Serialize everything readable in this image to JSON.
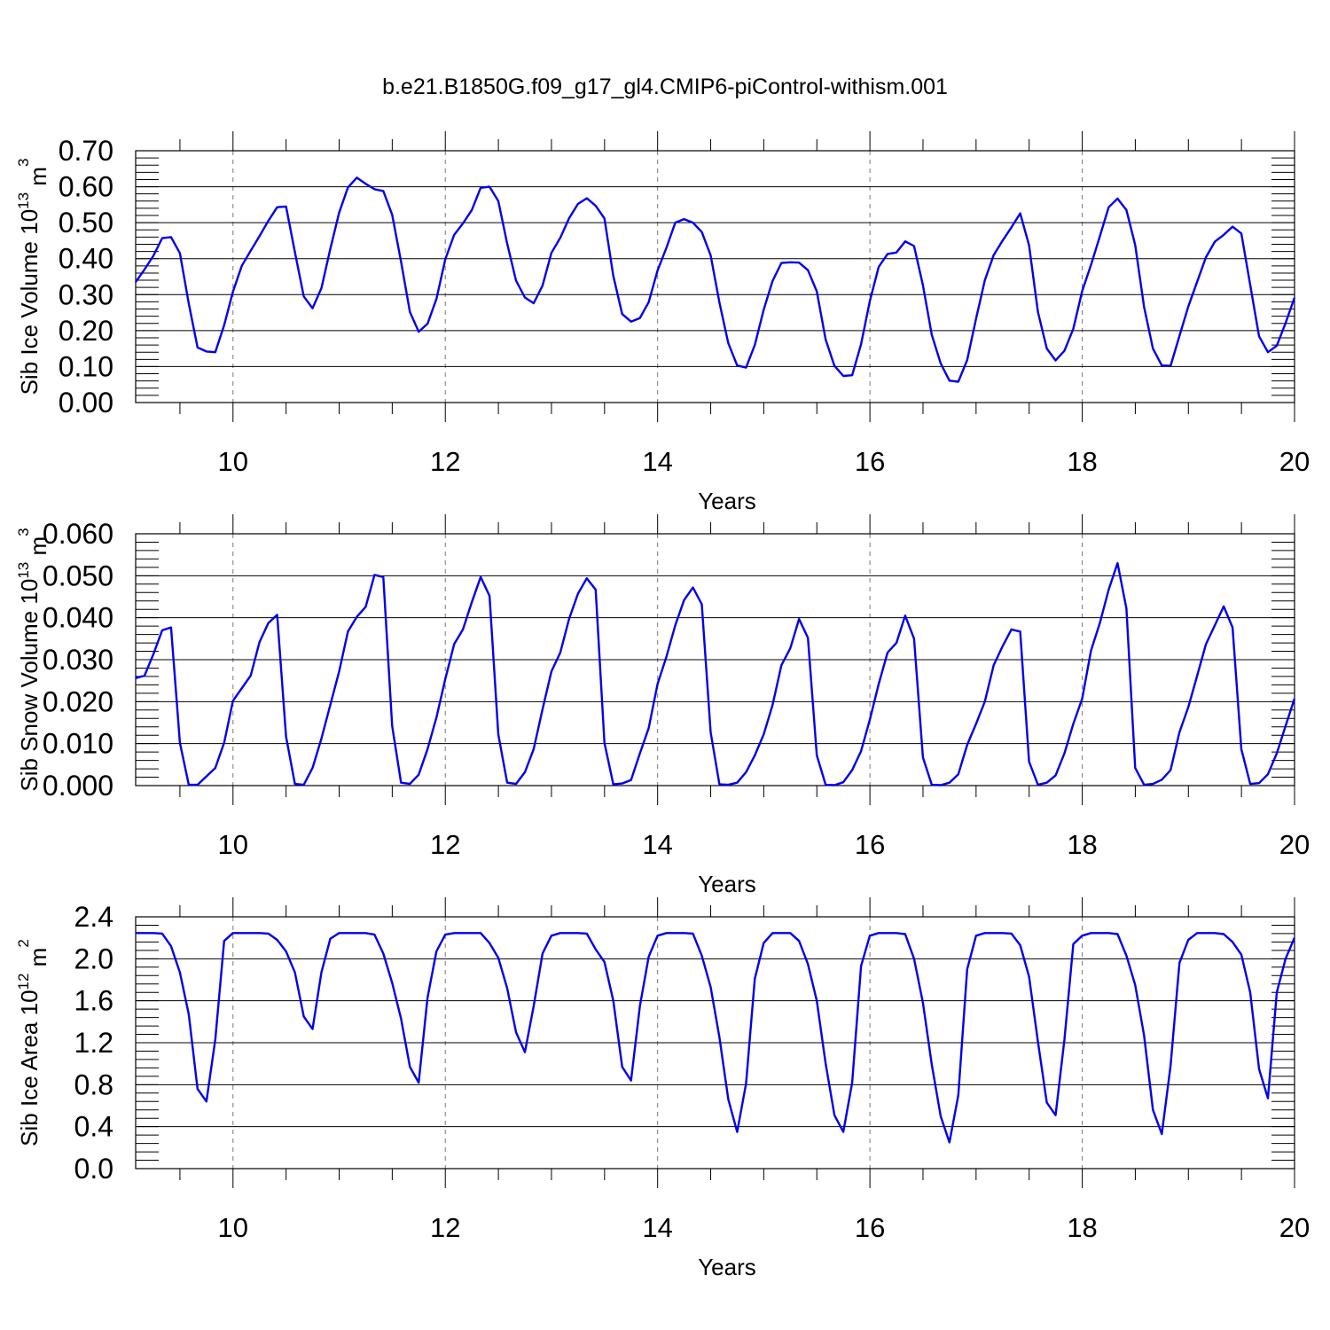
{
  "title": "b.e21.B1850G.f09_g17_gl4.CMIP6-piControl-withism.001",
  "x_ticks": [
    "10",
    "12",
    "14",
    "16",
    "18",
    "20"
  ],
  "chart_data": [
    {
      "type": "line",
      "title": "b.e21.B1850G.f09_g17_gl4.CMIP6-piControl-withism.001",
      "xlabel": "Years",
      "ylabel_text": "Sib Ice Volume 10",
      "ylabel_exp": "13",
      "ylabel_unit": " m",
      "ylabel_unit_exp": "3",
      "xlim": [
        9.083,
        20
      ],
      "ylim": [
        0,
        0.7
      ],
      "x_ticks": [
        10,
        12,
        14,
        16,
        18,
        20
      ],
      "y_ticks": [
        "0.00",
        "0.10",
        "0.20",
        "0.30",
        "0.40",
        "0.50",
        "0.60",
        "0.70"
      ],
      "y_minor_step": 0.02,
      "grid": "vertical dashed at major x ticks",
      "line_color": "#0000ee",
      "series": [
        {
          "x_start": 9.083,
          "x_step": 0.08333,
          "values": [
            0.335,
            0.37,
            0.408,
            0.457,
            0.46,
            0.415,
            0.275,
            0.153,
            0.142,
            0.14,
            0.215,
            0.308,
            0.38,
            0.422,
            0.463,
            0.505,
            0.543,
            0.545,
            0.418,
            0.295,
            0.262,
            0.318,
            0.427,
            0.528,
            0.598,
            0.625,
            0.608,
            0.593,
            0.588,
            0.522,
            0.392,
            0.252,
            0.197,
            0.219,
            0.288,
            0.398,
            0.466,
            0.498,
            0.535,
            0.597,
            0.6,
            0.56,
            0.442,
            0.339,
            0.292,
            0.276,
            0.325,
            0.416,
            0.458,
            0.512,
            0.552,
            0.568,
            0.547,
            0.512,
            0.352,
            0.246,
            0.225,
            0.235,
            0.279,
            0.367,
            0.43,
            0.5,
            0.51,
            0.5,
            0.474,
            0.409,
            0.278,
            0.165,
            0.103,
            0.097,
            0.16,
            0.258,
            0.338,
            0.388,
            0.39,
            0.389,
            0.368,
            0.309,
            0.175,
            0.102,
            0.074,
            0.076,
            0.162,
            0.282,
            0.377,
            0.413,
            0.417,
            0.448,
            0.435,
            0.326,
            0.188,
            0.109,
            0.061,
            0.058,
            0.118,
            0.233,
            0.34,
            0.41,
            0.45,
            0.487,
            0.526,
            0.437,
            0.252,
            0.15,
            0.117,
            0.144,
            0.205,
            0.31,
            0.383,
            0.462,
            0.543,
            0.567,
            0.535,
            0.438,
            0.266,
            0.15,
            0.103,
            0.102,
            0.185,
            0.267,
            0.336,
            0.404,
            0.447,
            0.466,
            0.489,
            0.47,
            0.327,
            0.184,
            0.14,
            0.158,
            0.221,
            0.291
          ]
        }
      ]
    },
    {
      "type": "line",
      "xlabel": "Years",
      "ylabel_text": "Sib Snow Volume 10",
      "ylabel_exp": "13",
      "ylabel_unit": " m",
      "ylabel_unit_exp": "3",
      "xlim": [
        9.083,
        20
      ],
      "ylim": [
        0,
        0.06
      ],
      "x_ticks": [
        10,
        12,
        14,
        16,
        18,
        20
      ],
      "y_ticks": [
        "0.000",
        "0.010",
        "0.020",
        "0.030",
        "0.040",
        "0.050",
        "0.060"
      ],
      "y_minor_step": 0.002,
      "grid": "vertical dashed at major x ticks",
      "line_color": "#0000ee",
      "series": [
        {
          "x_start": 9.083,
          "x_step": 0.08333,
          "values": [
            0.0256,
            0.0262,
            0.0313,
            0.037,
            0.0377,
            0.0102,
            0.0002,
            0.0002,
            0.0022,
            0.0042,
            0.0102,
            0.0202,
            0.0232,
            0.0262,
            0.0342,
            0.0387,
            0.0407,
            0.0117,
            0.0004,
            0.0002,
            0.0042,
            0.0112,
            0.0192,
            0.0272,
            0.0367,
            0.0402,
            0.0426,
            0.0502,
            0.0497,
            0.0142,
            0.0007,
            0.0004,
            0.0026,
            0.0087,
            0.0162,
            0.0254,
            0.0337,
            0.0372,
            0.0437,
            0.0497,
            0.0452,
            0.0122,
            0.0007,
            0.0004,
            0.0032,
            0.0087,
            0.0182,
            0.0272,
            0.0317,
            0.0397,
            0.0457,
            0.0494,
            0.0467,
            0.0102,
            0.0003,
            0.0005,
            0.0013,
            0.0077,
            0.0137,
            0.0242,
            0.0307,
            0.0382,
            0.0442,
            0.0472,
            0.0432,
            0.0127,
            0.0003,
            0.0002,
            0.0007,
            0.0032,
            0.0072,
            0.0122,
            0.0192,
            0.0287,
            0.0327,
            0.0397,
            0.0352,
            0.0072,
            0.0002,
            0.0001,
            0.0008,
            0.0037,
            0.0082,
            0.0157,
            0.0242,
            0.0317,
            0.034,
            0.0405,
            0.035,
            0.0067,
            0.0002,
            0.0001,
            0.0007,
            0.0027,
            0.0097,
            0.0147,
            0.02,
            0.0287,
            0.0332,
            0.0372,
            0.0367,
            0.0057,
            0.0002,
            0.0007,
            0.0024,
            0.0077,
            0.0147,
            0.0207,
            0.0322,
            0.0387,
            0.0467,
            0.053,
            0.0422,
            0.0042,
            0.0002,
            0.0004,
            0.0014,
            0.0037,
            0.0127,
            0.0187,
            0.0262,
            0.0337,
            0.0382,
            0.0427,
            0.0377,
            0.0087,
            0.0004,
            0.0006,
            0.0027,
            0.0077,
            0.0142,
            0.0207
          ]
        }
      ]
    },
    {
      "type": "line",
      "xlabel": "Years",
      "ylabel_text": "Sib Ice Area 10",
      "ylabel_exp": "12",
      "ylabel_unit": " m",
      "ylabel_unit_exp": "2",
      "xlim": [
        9.083,
        20
      ],
      "ylim": [
        0,
        2.4
      ],
      "x_ticks": [
        10,
        12,
        14,
        16,
        18,
        20
      ],
      "y_ticks": [
        "0.0",
        "0.4",
        "0.8",
        "1.2",
        "1.6",
        "2.0",
        "2.4"
      ],
      "y_minor_step": 0.08,
      "grid": "vertical dashed at major x ticks",
      "line_color": "#0000ee",
      "series": [
        {
          "x_start": 9.083,
          "x_step": 0.08333,
          "values": [
            2.245,
            2.245,
            2.245,
            2.24,
            2.12,
            1.87,
            1.47,
            0.76,
            0.64,
            1.23,
            2.17,
            2.245,
            2.245,
            2.245,
            2.245,
            2.24,
            2.18,
            2.07,
            1.87,
            1.45,
            1.33,
            1.87,
            2.19,
            2.245,
            2.245,
            2.245,
            2.245,
            2.23,
            2.05,
            1.77,
            1.43,
            0.97,
            0.82,
            1.63,
            2.07,
            2.23,
            2.245,
            2.245,
            2.245,
            2.245,
            2.15,
            2.01,
            1.72,
            1.3,
            1.11,
            1.55,
            2.05,
            2.22,
            2.245,
            2.245,
            2.245,
            2.24,
            2.09,
            1.97,
            1.6,
            0.97,
            0.84,
            1.55,
            2.02,
            2.22,
            2.245,
            2.245,
            2.245,
            2.24,
            2.03,
            1.73,
            1.25,
            0.66,
            0.35,
            0.81,
            1.81,
            2.15,
            2.245,
            2.245,
            2.245,
            2.17,
            1.95,
            1.6,
            1.0,
            0.51,
            0.35,
            0.82,
            1.93,
            2.22,
            2.245,
            2.245,
            2.245,
            2.235,
            2.0,
            1.58,
            0.99,
            0.5,
            0.25,
            0.7,
            1.9,
            2.22,
            2.245,
            2.245,
            2.245,
            2.24,
            2.13,
            1.83,
            1.21,
            0.63,
            0.51,
            1.23,
            2.14,
            2.22,
            2.245,
            2.245,
            2.245,
            2.235,
            2.03,
            1.75,
            1.27,
            0.56,
            0.33,
            0.98,
            1.96,
            2.18,
            2.245,
            2.245,
            2.245,
            2.235,
            2.16,
            2.04,
            1.68,
            0.95,
            0.67,
            1.68,
            2.0,
            2.2
          ]
        }
      ]
    }
  ]
}
